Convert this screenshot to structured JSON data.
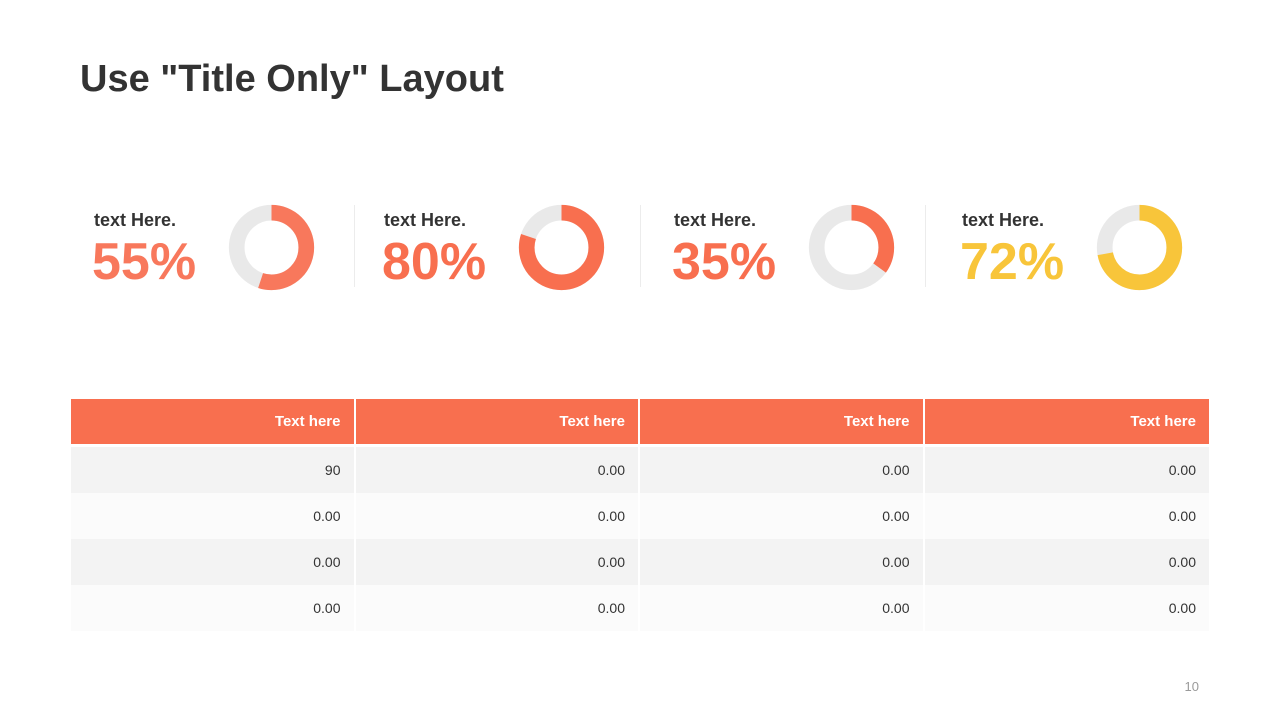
{
  "slide": {
    "title": "Use \"Title Only\" Layout",
    "page_number": "10"
  },
  "stats": [
    {
      "label": "text Here.",
      "value_text": "55%",
      "percent": 55,
      "color": "#f8785c"
    },
    {
      "label": "text Here.",
      "value_text": "80%",
      "percent": 80,
      "color": "#f86f4f"
    },
    {
      "label": "text Here.",
      "value_text": "35%",
      "percent": 35,
      "color": "#f86f4f"
    },
    {
      "label": "text Here.",
      "value_text": "72%",
      "percent": 72,
      "color": "#f8c53a"
    }
  ],
  "donut_track_color": "#e9e9e9",
  "table": {
    "headers": [
      "Text here",
      "Text here",
      "Text here",
      "Text here"
    ],
    "rows": [
      [
        "90",
        "0.00",
        "0.00",
        "0.00"
      ],
      [
        "0.00",
        "0.00",
        "0.00",
        "0.00"
      ],
      [
        "0.00",
        "0.00",
        "0.00",
        "0.00"
      ],
      [
        "0.00",
        "0.00",
        "0.00",
        "0.00"
      ]
    ],
    "header_color": "#f86f4f"
  }
}
